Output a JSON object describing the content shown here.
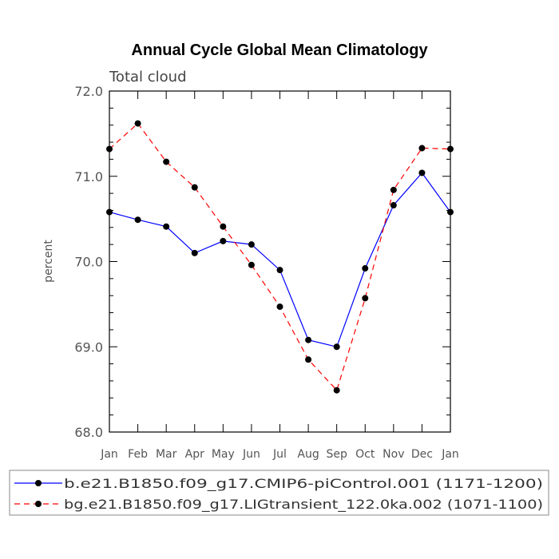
{
  "chart_data": {
    "type": "line",
    "title": "Annual Cycle Global Mean Climatology",
    "subtitle": "Total cloud",
    "xlabel": "",
    "ylabel": "percent",
    "categories": [
      "Jan",
      "Feb",
      "Mar",
      "Apr",
      "May",
      "Jun",
      "Jul",
      "Aug",
      "Sep",
      "Oct",
      "Nov",
      "Dec",
      "Jan"
    ],
    "ylim": [
      68.0,
      72.0
    ],
    "yticks": [
      "68.0",
      "69.0",
      "70.0",
      "71.0",
      "72.0"
    ],
    "grid": false,
    "legend_position": "bottom",
    "series": [
      {
        "name": "b.e21.B1850.f09_g17.CMIP6-piControl.001 (1171-1200)",
        "color": "#0000ff",
        "dash": "solid",
        "values": [
          70.58,
          70.49,
          70.41,
          70.1,
          70.24,
          70.2,
          69.9,
          69.08,
          69.0,
          69.92,
          70.66,
          71.04,
          70.58
        ]
      },
      {
        "name": "bg.e21.B1850.f09_g17.LIGtransient_122.0ka.002 (1071-1100)",
        "color": "#ff0000",
        "dash": "dashed",
        "values": [
          71.32,
          71.62,
          71.17,
          70.87,
          70.41,
          69.96,
          69.47,
          68.85,
          68.49,
          69.57,
          70.84,
          71.33,
          71.32
        ]
      }
    ]
  }
}
